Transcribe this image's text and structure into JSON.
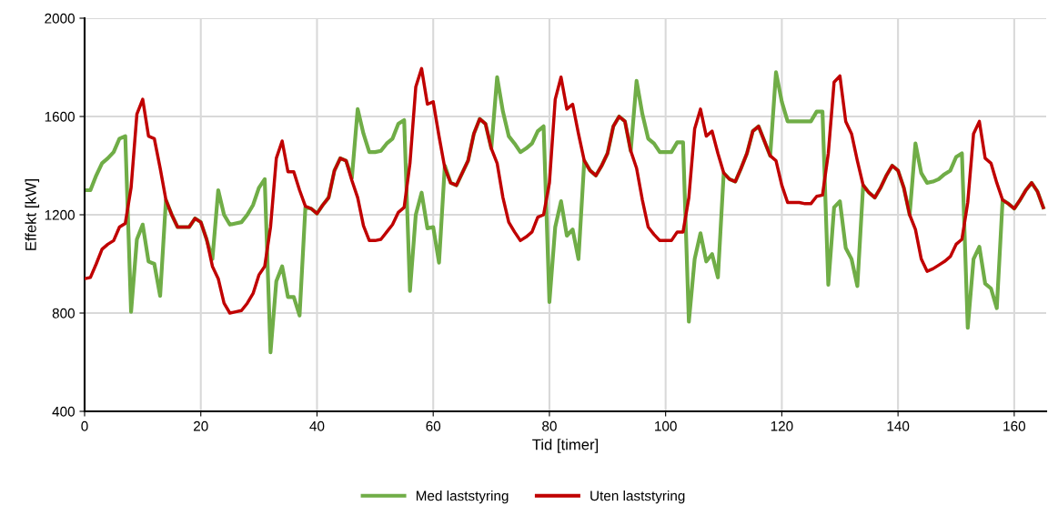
{
  "chart_data": {
    "type": "line",
    "xlabel": "Tid [timer]",
    "ylabel": "Effekt [kW]",
    "x": [
      0,
      1,
      2,
      3,
      4,
      5,
      6,
      7,
      8,
      9,
      10,
      11,
      12,
      13,
      14,
      15,
      16,
      17,
      18,
      19,
      20,
      21,
      22,
      23,
      24,
      25,
      26,
      27,
      28,
      29,
      30,
      31,
      32,
      33,
      34,
      35,
      36,
      37,
      38,
      39,
      40,
      41,
      42,
      43,
      44,
      45,
      46,
      47,
      48,
      49,
      50,
      51,
      52,
      53,
      54,
      55,
      56,
      57,
      58,
      59,
      60,
      61,
      62,
      63,
      64,
      65,
      66,
      67,
      68,
      69,
      70,
      71,
      72,
      73,
      74,
      75,
      76,
      77,
      78,
      79,
      80,
      81,
      82,
      83,
      84,
      85,
      86,
      87,
      88,
      89,
      90,
      91,
      92,
      93,
      94,
      95,
      96,
      97,
      98,
      99,
      100,
      101,
      102,
      103,
      104,
      105,
      106,
      107,
      108,
      109,
      110,
      111,
      112,
      113,
      114,
      115,
      116,
      117,
      118,
      119,
      120,
      121,
      122,
      123,
      124,
      125,
      126,
      127,
      128,
      129,
      130,
      131,
      132,
      133,
      134,
      135,
      136,
      137,
      138,
      139,
      140,
      141,
      142,
      143,
      144,
      145,
      146,
      147,
      148,
      149,
      150,
      151,
      152,
      153,
      154,
      155,
      156,
      157,
      158,
      159,
      160,
      161,
      162,
      163,
      164,
      165
    ],
    "series": [
      {
        "name": "Med laststyring",
        "color": "#70ad47",
        "values": [
          1300,
          1300,
          1360,
          1410,
          1430,
          1455,
          1510,
          1520,
          805,
          1100,
          1160,
          1010,
          1000,
          870,
          1260,
          1200,
          1150,
          1150,
          1150,
          1185,
          1170,
          1100,
          1020,
          1300,
          1200,
          1160,
          1165,
          1170,
          1200,
          1240,
          1310,
          1345,
          640,
          930,
          990,
          865,
          865,
          790,
          1230,
          1225,
          1205,
          1240,
          1270,
          1380,
          1430,
          1420,
          1350,
          1630,
          1530,
          1455,
          1455,
          1460,
          1490,
          1510,
          1570,
          1585,
          890,
          1200,
          1290,
          1145,
          1150,
          1005,
          1400,
          1330,
          1320,
          1370,
          1420,
          1530,
          1590,
          1570,
          1470,
          1760,
          1620,
          1520,
          1490,
          1455,
          1470,
          1490,
          1540,
          1560,
          845,
          1150,
          1255,
          1115,
          1140,
          1020,
          1420,
          1380,
          1360,
          1400,
          1450,
          1560,
          1600,
          1580,
          1460,
          1745,
          1610,
          1510,
          1490,
          1455,
          1455,
          1455,
          1495,
          1495,
          765,
          1020,
          1125,
          1010,
          1040,
          945,
          1370,
          1345,
          1335,
          1390,
          1450,
          1540,
          1560,
          1500,
          1440,
          1780,
          1660,
          1580,
          1580,
          1580,
          1580,
          1580,
          1620,
          1620,
          915,
          1230,
          1255,
          1065,
          1020,
          910,
          1320,
          1290,
          1270,
          1310,
          1360,
          1400,
          1380,
          1310,
          1200,
          1490,
          1370,
          1330,
          1335,
          1345,
          1365,
          1380,
          1435,
          1450,
          740,
          1020,
          1070,
          920,
          900,
          820,
          1260,
          1245,
          1225,
          1260,
          1300,
          1330,
          1295,
          1230
        ]
      },
      {
        "name": "Uten laststyring",
        "color": "#c00000",
        "values": [
          940,
          945,
          1000,
          1060,
          1080,
          1095,
          1150,
          1165,
          1310,
          1610,
          1670,
          1520,
          1510,
          1390,
          1260,
          1200,
          1150,
          1150,
          1150,
          1185,
          1170,
          1100,
          990,
          940,
          840,
          800,
          805,
          810,
          840,
          880,
          955,
          990,
          1150,
          1430,
          1500,
          1375,
          1375,
          1300,
          1235,
          1225,
          1205,
          1240,
          1270,
          1380,
          1430,
          1420,
          1340,
          1270,
          1155,
          1095,
          1095,
          1100,
          1130,
          1160,
          1210,
          1230,
          1410,
          1720,
          1795,
          1650,
          1660,
          1520,
          1390,
          1330,
          1320,
          1370,
          1420,
          1530,
          1590,
          1570,
          1470,
          1410,
          1270,
          1170,
          1130,
          1095,
          1110,
          1130,
          1190,
          1200,
          1330,
          1670,
          1760,
          1630,
          1650,
          1530,
          1420,
          1380,
          1360,
          1400,
          1450,
          1560,
          1600,
          1580,
          1460,
          1390,
          1260,
          1150,
          1120,
          1095,
          1095,
          1095,
          1130,
          1130,
          1270,
          1550,
          1630,
          1520,
          1540,
          1450,
          1370,
          1345,
          1335,
          1390,
          1450,
          1540,
          1560,
          1500,
          1440,
          1420,
          1320,
          1250,
          1250,
          1250,
          1245,
          1245,
          1275,
          1280,
          1450,
          1740,
          1765,
          1580,
          1530,
          1420,
          1320,
          1290,
          1270,
          1310,
          1360,
          1400,
          1380,
          1310,
          1200,
          1140,
          1020,
          970,
          980,
          995,
          1010,
          1030,
          1080,
          1100,
          1250,
          1530,
          1580,
          1430,
          1410,
          1330,
          1260,
          1245,
          1225,
          1260,
          1300,
          1330,
          1295,
          1230
        ]
      }
    ],
    "xlim": [
      0,
      165.5
    ],
    "xticks": [
      0,
      20,
      40,
      60,
      80,
      100,
      120,
      140,
      160
    ],
    "ylim": [
      400,
      2000
    ],
    "yticks": [
      400,
      800,
      1200,
      1600,
      2000
    ],
    "grid": true,
    "legend": "bottom",
    "marker": "none",
    "line_style": "solid"
  }
}
